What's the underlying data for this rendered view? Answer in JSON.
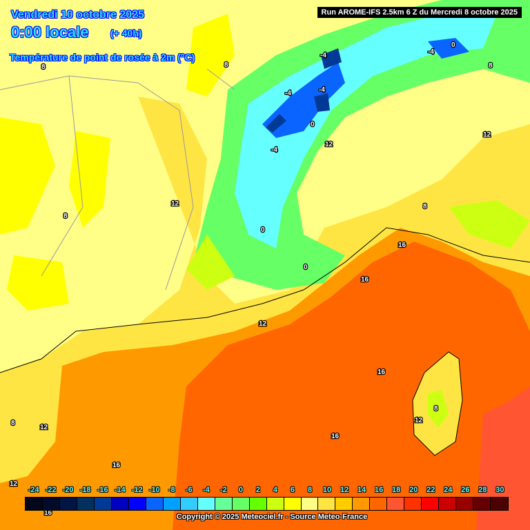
{
  "header": {
    "date": "Vendredi 10 octobre 2025",
    "time": "0:00 locale",
    "lead": "(+ 40h)",
    "parameter": "Température de point de rosée à 2m (°C)",
    "run": "Run AROME-IFS 2.5km 6 Z du Mercredi 8 octobre 2025"
  },
  "legend": {
    "labels": [
      "-24",
      "-22",
      "-20",
      "-18",
      "-16",
      "-14",
      "-12",
      "-10",
      "-8",
      "-6",
      "-4",
      "-2",
      "0",
      "2",
      "4",
      "6",
      "8",
      "10",
      "12",
      "14",
      "16",
      "18",
      "20",
      "22",
      "24",
      "26",
      "28",
      "30"
    ],
    "colors": [
      "#04061a",
      "#020b2a",
      "#011446",
      "#023160",
      "#013a96",
      "#0000c0",
      "#0000ff",
      "#0a64ff",
      "#00a0ff",
      "#33ccff",
      "#66ffff",
      "#66ff99",
      "#66ff66",
      "#66ff00",
      "#ccff11",
      "#ffff00",
      "#ffff88",
      "#ffe544",
      "#ffcc00",
      "#ff9900",
      "#ff6600",
      "#ff5533",
      "#ff3300",
      "#ff0000",
      "#cc0000",
      "#990000",
      "#660000",
      "#4d0000"
    ]
  },
  "contour_labels": [
    "8",
    "8",
    "8",
    "-4",
    "-4",
    "-4",
    "-4",
    "-4",
    "0",
    "0",
    "0",
    "0",
    "12",
    "12",
    "12",
    "12",
    "8",
    "8",
    "8",
    "16",
    "16",
    "16",
    "16",
    "16",
    "12",
    "12",
    "12",
    "8",
    "16"
  ],
  "copyright": "Copyright © 2025 Meteociel.fr - Source Meteo-France"
}
